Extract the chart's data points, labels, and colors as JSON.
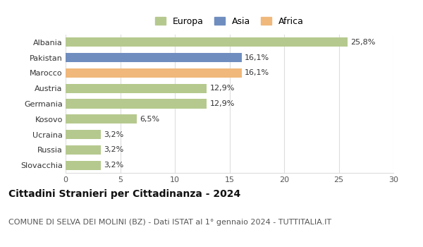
{
  "categories": [
    "Albania",
    "Pakistan",
    "Marocco",
    "Austria",
    "Germania",
    "Kosovo",
    "Ucraina",
    "Russia",
    "Slovacchia"
  ],
  "values": [
    25.8,
    16.1,
    16.1,
    12.9,
    12.9,
    6.5,
    3.2,
    3.2,
    3.2
  ],
  "labels": [
    "25,8%",
    "16,1%",
    "16,1%",
    "12,9%",
    "12,9%",
    "6,5%",
    "3,2%",
    "3,2%",
    "3,2%"
  ],
  "colors": [
    "#b5c98e",
    "#6f8ebf",
    "#f0b87a",
    "#b5c98e",
    "#b5c98e",
    "#b5c98e",
    "#b5c98e",
    "#b5c98e",
    "#b5c98e"
  ],
  "legend": [
    {
      "label": "Europa",
      "color": "#b5c98e"
    },
    {
      "label": "Asia",
      "color": "#6f8ebf"
    },
    {
      "label": "Africa",
      "color": "#f0b87a"
    }
  ],
  "xlim": [
    0,
    30
  ],
  "xticks": [
    0,
    5,
    10,
    15,
    20,
    25,
    30
  ],
  "title": "Cittadini Stranieri per Cittadinanza - 2024",
  "subtitle": "COMUNE DI SELVA DEI MOLINI (BZ) - Dati ISTAT al 1° gennaio 2024 - TUTTITALIA.IT",
  "background_color": "#ffffff",
  "grid_color": "#dddddd",
  "bar_height": 0.6,
  "label_fontsize": 8,
  "title_fontsize": 10,
  "subtitle_fontsize": 8,
  "ytick_fontsize": 8,
  "xtick_fontsize": 8
}
